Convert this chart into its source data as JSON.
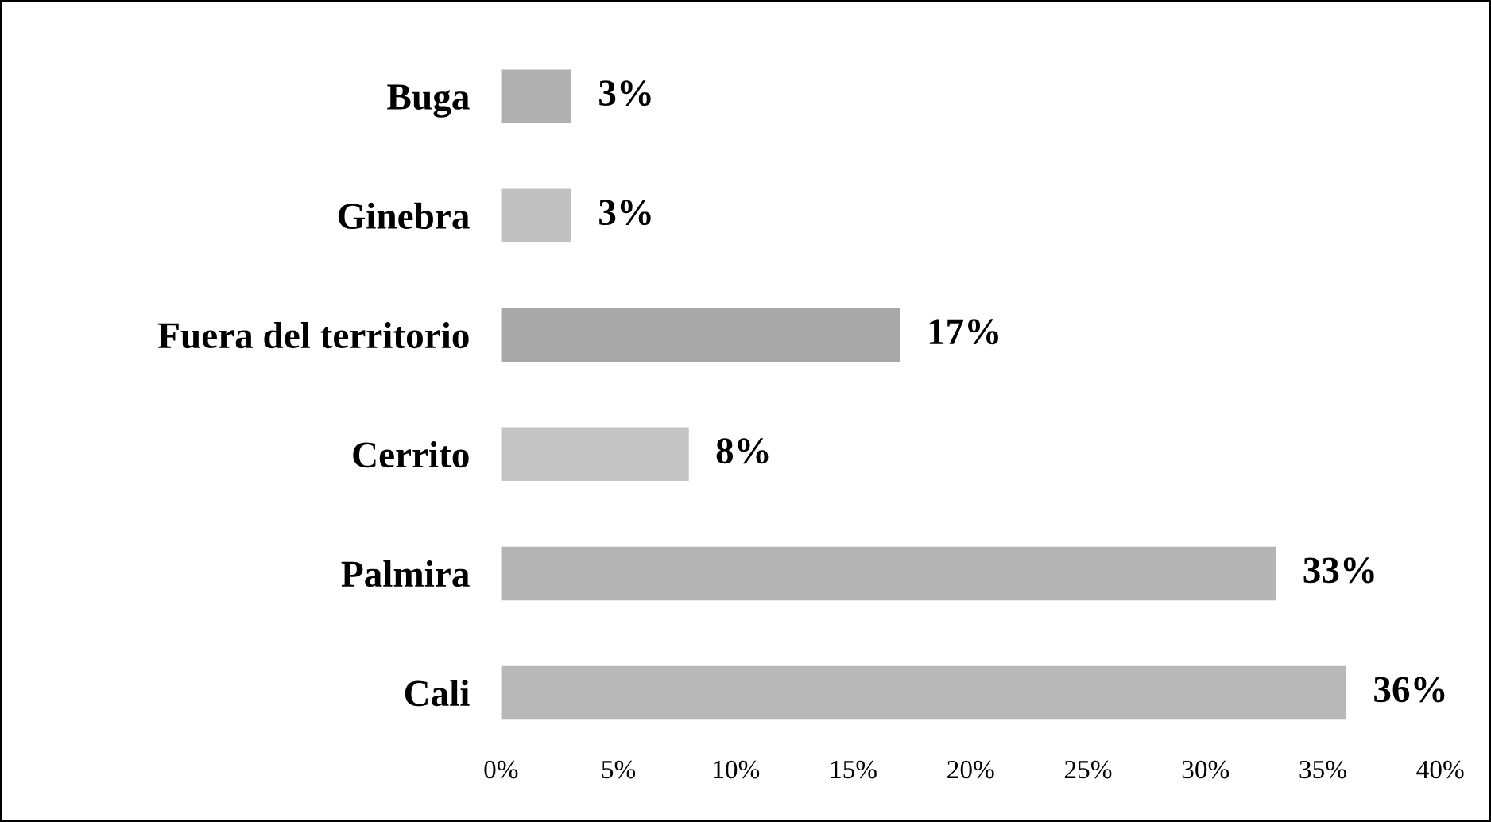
{
  "chart_data": {
    "type": "bar",
    "orientation": "horizontal",
    "categories": [
      "Buga",
      "Ginebra",
      "Fuera del territorio",
      "Cerrito",
      "Palmira",
      "Cali"
    ],
    "values": [
      3,
      3,
      17,
      8,
      33,
      36
    ],
    "colors": [
      "#b0b0b0",
      "#c0c0c0",
      "#a8a8a8",
      "#c4c4c4",
      "#b4b4b4",
      "#b8b8b8"
    ],
    "value_labels": [
      "3%",
      "3%",
      "17%",
      "8%",
      "33%",
      "36%"
    ],
    "xlim": [
      0,
      40
    ],
    "xticks": [
      {
        "value": 0,
        "label": "0%"
      },
      {
        "value": 5,
        "label": "5%"
      },
      {
        "value": 10,
        "label": "10%"
      },
      {
        "value": 15,
        "label": "15%"
      },
      {
        "value": 20,
        "label": "20%"
      },
      {
        "value": 25,
        "label": "25%"
      },
      {
        "value": 30,
        "label": "30%"
      },
      {
        "value": 35,
        "label": "35%"
      },
      {
        "value": 40,
        "label": "40%"
      }
    ],
    "grid": false,
    "legend": false
  }
}
